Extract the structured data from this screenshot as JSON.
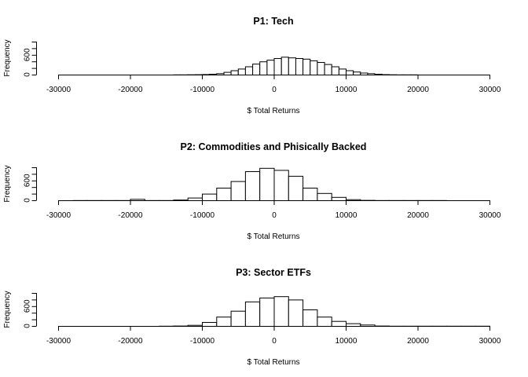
{
  "chart_data": [
    {
      "type": "histogram",
      "title": "P1: Tech",
      "xlabel": "$ Total Returns",
      "ylabel": "Frequency",
      "xlim": [
        -30000,
        30000
      ],
      "ylim": [
        0,
        1000
      ],
      "x_ticks": [
        -30000,
        -20000,
        -10000,
        0,
        10000,
        20000,
        30000
      ],
      "x_tick_labels": [
        "-30000",
        "-20000",
        "-10000",
        "0",
        "10000",
        "20000",
        "30000"
      ],
      "y_ticks": [
        0,
        600
      ],
      "y_tick_labels": [
        "0",
        "600"
      ],
      "bin_width": 1000,
      "bin_start": -14000,
      "counts": [
        5,
        5,
        8,
        10,
        15,
        25,
        40,
        80,
        130,
        180,
        250,
        330,
        400,
        450,
        500,
        540,
        520,
        500,
        480,
        430,
        380,
        320,
        250,
        180,
        130,
        90,
        60,
        40,
        25,
        12,
        8,
        5,
        5,
        5
      ]
    },
    {
      "type": "histogram",
      "title": "P2: Commodities and Phisically Backed",
      "xlabel": "$ Total Returns",
      "ylabel": "Frequency",
      "xlim": [
        -30000,
        30000
      ],
      "ylim": [
        0,
        1000
      ],
      "x_ticks": [
        -30000,
        -20000,
        -10000,
        0,
        10000,
        20000,
        30000
      ],
      "x_tick_labels": [
        "-30000",
        "-20000",
        "-10000",
        "0",
        "10000",
        "20000",
        "30000"
      ],
      "y_ticks": [
        0,
        600
      ],
      "y_tick_labels": [
        "0",
        "600"
      ],
      "bin_width": 2000,
      "bin_start": -28000,
      "counts": [
        5,
        5,
        5,
        5,
        40,
        5,
        5,
        20,
        80,
        200,
        380,
        580,
        880,
        980,
        920,
        740,
        380,
        220,
        100,
        30,
        10,
        5,
        5,
        5,
        5,
        5
      ]
    },
    {
      "type": "histogram",
      "title": "P3: Sector ETFs",
      "xlabel": "$ Total Returns",
      "ylabel": "Frequency",
      "xlim": [
        -30000,
        30000
      ],
      "ylim": [
        0,
        1000
      ],
      "x_ticks": [
        -30000,
        -20000,
        -10000,
        0,
        10000,
        20000,
        30000
      ],
      "x_tick_labels": [
        "-30000",
        "-20000",
        "-10000",
        "0",
        "10000",
        "20000",
        "30000"
      ],
      "y_ticks": [
        0,
        600
      ],
      "y_tick_labels": [
        "0",
        "600"
      ],
      "bin_width": 2000,
      "bin_start": -16000,
      "counts": [
        5,
        10,
        30,
        120,
        280,
        460,
        740,
        860,
        900,
        800,
        500,
        280,
        150,
        80,
        40,
        10,
        5,
        5,
        5,
        5,
        5,
        5,
        5
      ]
    }
  ],
  "colors": {
    "background": "#ffffff",
    "bar_fill": "#ffffff",
    "stroke": "#000000",
    "text": "#000000"
  }
}
